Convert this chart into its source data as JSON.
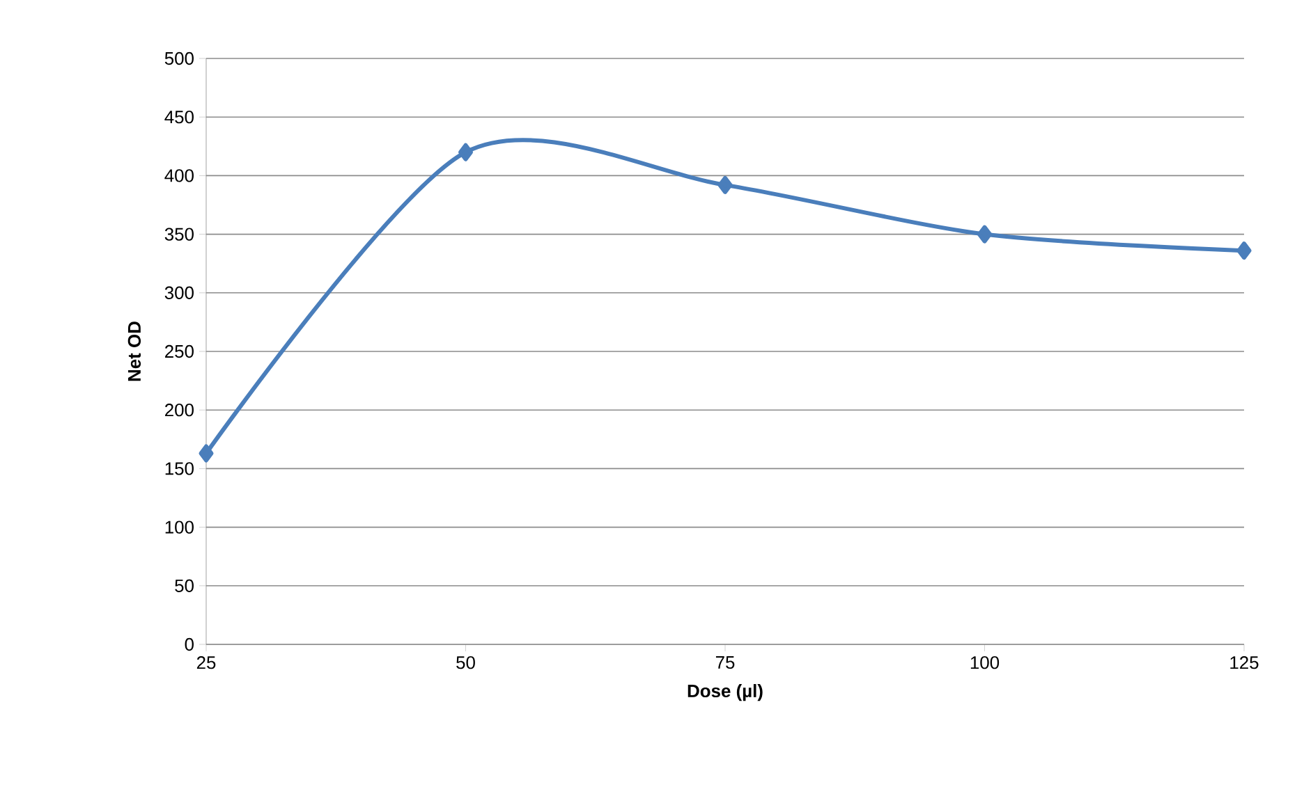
{
  "chart_data": {
    "type": "line",
    "xlabel": "Dose (µl)",
    "ylabel": "Net OD",
    "x": [
      25,
      50,
      75,
      100,
      125
    ],
    "series": [
      {
        "color": "#4a7ebb",
        "values": [
          163,
          420,
          392,
          350,
          336
        ]
      }
    ],
    "xlim": [
      25,
      125
    ],
    "xticks": [
      25,
      50,
      75,
      100,
      125
    ],
    "ylim": [
      0,
      500
    ],
    "yticks": [
      0,
      50,
      100,
      150,
      200,
      250,
      300,
      350,
      400,
      450,
      500
    ],
    "grid": "y",
    "marker": "diamond",
    "line_style": "solid"
  }
}
